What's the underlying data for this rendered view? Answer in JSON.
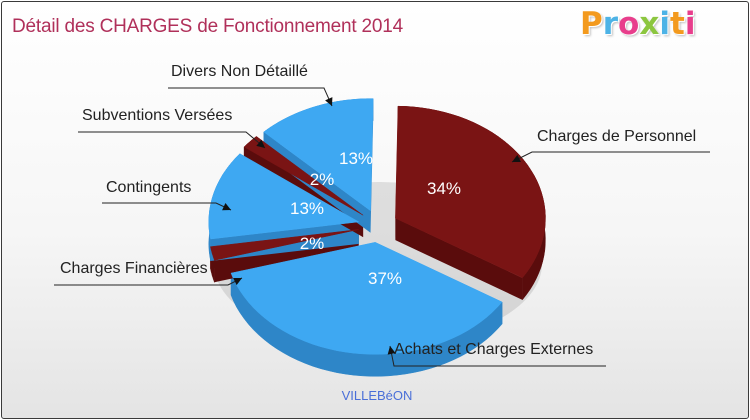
{
  "title": "Détail des CHARGES de Fonctionnement 2014",
  "brand": {
    "text": "Proxiti",
    "letters": [
      {
        "char": "P",
        "color": "#f39a1e"
      },
      {
        "char": "r",
        "color": "#4db3e6"
      },
      {
        "char": "o",
        "color": "#e83e8c"
      },
      {
        "char": "x",
        "color": "#8cc63f"
      },
      {
        "char": "i",
        "color": "#4db3e6"
      },
      {
        "char": "t",
        "color": "#f39a1e"
      },
      {
        "char": "i",
        "color": "#e83e8c"
      }
    ]
  },
  "colors": {
    "title": "#b0305a",
    "blue": "#3ea8f2",
    "blue_side": "#2e86c8",
    "red": "#7a1414",
    "red_side": "#5a0c0c",
    "subtitle": "#4a6fd8"
  },
  "chart_data": {
    "type": "pie",
    "title": "Détail des CHARGES de Fonctionnement 2014",
    "subtitle": "VILLEBéON",
    "start_angle_deg": 89,
    "direction": "clockwise",
    "slices": [
      {
        "name": "Charges de Personnel",
        "value": 34,
        "label": "34%",
        "color": "#7a1414",
        "side": "#5a0c0c"
      },
      {
        "name": "Achats et Charges Externes",
        "value": 37,
        "label": "37%",
        "color": "#3ea8f2",
        "side": "#2e86c8"
      },
      {
        "name": "Charges Financières",
        "value": 2,
        "label": "2%",
        "color": "#7a1414",
        "side": "#5a0c0c"
      },
      {
        "name": "Contingents",
        "value": 13,
        "label": "13%",
        "color": "#3ea8f2",
        "side": "#2e86c8"
      },
      {
        "name": "Subventions Versées",
        "value": 2,
        "label": "2%",
        "color": "#7a1414",
        "side": "#5a0c0c"
      },
      {
        "name": "Divers Non Détaillé",
        "value": 13,
        "label": "13%",
        "color": "#3ea8f2",
        "side": "#2e86c8"
      }
    ]
  }
}
